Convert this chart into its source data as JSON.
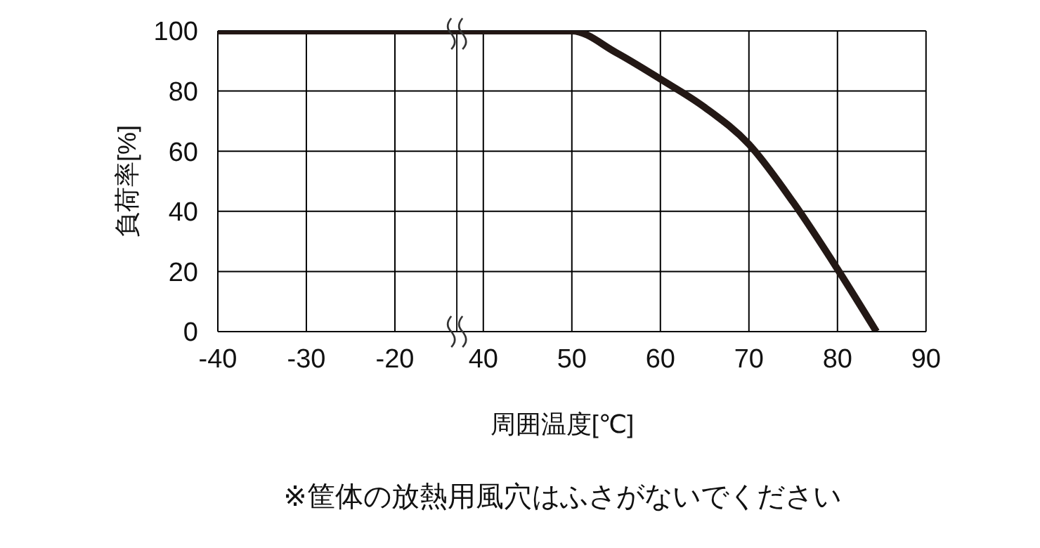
{
  "chart_data": [
    {
      "type": "line",
      "ylabel": "負荷率[%]",
      "xlim": [
        -40,
        -13
      ],
      "xticks": [
        -40,
        -30,
        -20
      ],
      "ylim": [
        0,
        100
      ],
      "yticks": [
        0,
        20,
        40,
        60,
        80,
        100
      ],
      "grid": true,
      "marker": "none",
      "line_style": "solid",
      "series": [
        {
          "color": "#231815",
          "x": [
            -40,
            -13
          ],
          "values": [
            100,
            100
          ]
        }
      ]
    },
    {
      "type": "line",
      "xlabel": "周囲温度[℃]",
      "annotations": [
        "※筐体の放熱用風穴はふさがないでください"
      ],
      "xlim": [
        37,
        90
      ],
      "xticks": [
        40,
        50,
        60,
        70,
        80,
        90
      ],
      "ylim": [
        0,
        100
      ],
      "yticks": [
        0,
        20,
        40,
        60,
        80,
        100
      ],
      "grid": true,
      "marker": "none",
      "line_style": "solid",
      "tick_labels": "x",
      "series": [
        {
          "color": "#231815",
          "x": [
            37,
            50,
            55,
            60,
            65,
            70,
            75,
            80,
            84.4
          ],
          "values": [
            100,
            100,
            92.8,
            84,
            74.6,
            62.3,
            43,
            20.8,
            0
          ]
        }
      ]
    }
  ]
}
